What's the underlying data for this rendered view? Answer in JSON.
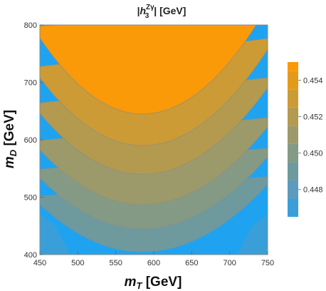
{
  "chart_data": {
    "type": "contour",
    "title": {
      "bar": "|",
      "main": "h",
      "sub": "3",
      "sup": "Zγ",
      "after": "| [GeV]"
    },
    "xlabel": {
      "main": "m",
      "sub": "T",
      "unit": " [GeV]"
    },
    "ylabel": {
      "main": "m",
      "sub": "D",
      "unit": " [GeV]"
    },
    "xlim": [
      445,
      755
    ],
    "ylim": [
      390,
      808
    ],
    "plot_x_range": [
      450,
      750
    ],
    "plot_y_range": [
      400,
      800
    ],
    "xticks": [
      450,
      500,
      550,
      600,
      650,
      700,
      750
    ],
    "yticks": [
      400,
      500,
      600,
      700,
      800
    ],
    "xtick_labels": [
      "450",
      "500",
      "550",
      "600",
      "650",
      "700",
      "750"
    ],
    "ytick_labels": [
      "400",
      "500",
      "600",
      "700",
      "800"
    ],
    "contour_levels": [
      0.4465,
      0.4475,
      0.4485,
      0.4495,
      0.4505,
      0.4515,
      0.4525,
      0.4535,
      0.4545
    ],
    "level_colors": [
      "#1fa3f0",
      "#3a9fd8",
      "#5b9bbd",
      "#6e9a9e",
      "#859a84",
      "#9c9a6a",
      "#b49a4f",
      "#cc9b35",
      "#e49b1c",
      "#fa9a08"
    ],
    "contours": [
      {
        "level": 0.4545,
        "vertex": [
          585,
          645
        ]
      },
      {
        "level": 0.4535,
        "vertex": [
          585,
          590
        ]
      },
      {
        "level": 0.4525,
        "vertex": [
          585,
          540
        ]
      },
      {
        "level": 0.4515,
        "vertex": [
          585,
          487
        ]
      },
      {
        "level": 0.4505,
        "vertex": [
          585,
          445
        ]
      },
      {
        "level": 0.4495,
        "vertex": [
          585,
          405
        ]
      }
    ],
    "colorbar": {
      "min": 0.4465,
      "max": 0.455,
      "ticks": [
        0.448,
        0.45,
        0.452,
        0.454
      ],
      "tick_labels": [
        "0.448",
        "0.450",
        "0.452",
        "0.454"
      ]
    },
    "grid": false
  }
}
